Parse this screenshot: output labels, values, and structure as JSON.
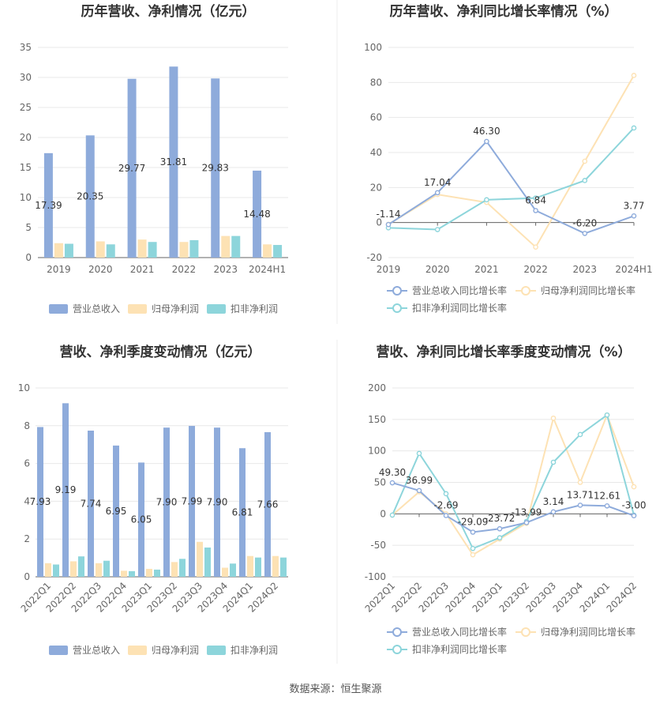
{
  "source_label": "数据来源：恒生聚源",
  "colors": {
    "revenue": "#8eabdb",
    "net_profit": "#fde2b4",
    "deducted_profit": "#8dd5db",
    "grid": "#e8e8e8",
    "axis": "#666666"
  },
  "chart_data": [
    {
      "type": "bar",
      "title": "历年营收、净利情况（亿元）",
      "categories": [
        "2019",
        "2020",
        "2021",
        "2022",
        "2023",
        "2024H1"
      ],
      "series": [
        {
          "name": "营业总收入",
          "values": [
            17.39,
            20.35,
            29.77,
            31.81,
            29.83,
            14.48
          ]
        },
        {
          "name": "归母净利润",
          "values": [
            2.4,
            2.7,
            3.0,
            2.6,
            3.6,
            2.2
          ]
        },
        {
          "name": "扣非净利润",
          "values": [
            2.3,
            2.2,
            2.6,
            2.9,
            3.6,
            2.1
          ]
        }
      ],
      "data_labels": [
        "17.39",
        "20.35",
        "29.77",
        "31.81",
        "29.83",
        "14.48"
      ],
      "ylim": [
        0,
        35
      ],
      "yticks": [
        "0",
        "5",
        "10",
        "15",
        "20",
        "25",
        "30",
        "35"
      ],
      "grid": true,
      "legend": "bottom"
    },
    {
      "type": "line",
      "title": "历年营收、净利同比增长率情况（%）",
      "categories": [
        "2019",
        "2020",
        "2021",
        "2022",
        "2023",
        "2024H1"
      ],
      "series": [
        {
          "name": "营业总收入同比增长率",
          "values": [
            -1.14,
            17.04,
            46.3,
            6.84,
            -6.2,
            3.77
          ]
        },
        {
          "name": "归母净利润同比增长率",
          "values": [
            -1,
            16,
            11.5,
            -14,
            35,
            84
          ]
        },
        {
          "name": "扣非净利润同比增长率",
          "values": [
            -3,
            -4,
            13,
            14,
            24,
            54
          ]
        }
      ],
      "data_labels": [
        "-1.14",
        "17.04",
        "46.30",
        "6.84",
        "-6.20",
        "3.77"
      ],
      "ylim": [
        -20,
        100
      ],
      "yticks": [
        "-20",
        "0",
        "20",
        "40",
        "60",
        "80",
        "100"
      ],
      "grid": true,
      "legend": "bottom"
    },
    {
      "type": "bar",
      "title": "营收、净利季度变动情况（亿元）",
      "categories": [
        "2022Q1",
        "2022Q2",
        "2022Q3",
        "2022Q4",
        "2023Q1",
        "2023Q2",
        "2023Q3",
        "2023Q4",
        "2024Q1",
        "2024Q2"
      ],
      "series": [
        {
          "name": "营业总收入",
          "values": [
            7.93,
            9.19,
            7.74,
            6.95,
            6.05,
            7.9,
            7.99,
            7.9,
            6.81,
            7.66
          ]
        },
        {
          "name": "归母净利润",
          "values": [
            0.72,
            0.82,
            0.72,
            0.32,
            0.42,
            0.78,
            1.85,
            0.48,
            1.1,
            1.1
          ]
        },
        {
          "name": "扣非净利润",
          "values": [
            0.65,
            1.08,
            0.85,
            0.3,
            0.38,
            0.95,
            1.55,
            0.7,
            1.02,
            1.02
          ]
        }
      ],
      "data_labels": [
        "7.93",
        "9.19",
        "7.74",
        "6.95",
        "6.05",
        "7.90",
        "7.99",
        "7.90",
        "6.81",
        "7.66"
      ],
      "ylim": [
        0,
        10
      ],
      "yticks": [
        "0",
        "2",
        "4",
        "6",
        "8",
        "10"
      ],
      "grid": true,
      "legend": "bottom"
    },
    {
      "type": "line",
      "title": "营收、净利同比增长率季度变动情况（%）",
      "categories": [
        "2022Q1",
        "2022Q2",
        "2022Q3",
        "2022Q4",
        "2023Q1",
        "2023Q2",
        "2023Q3",
        "2023Q4",
        "2024Q1",
        "2024Q2"
      ],
      "series": [
        {
          "name": "营业总收入同比增长率",
          "values": [
            49.3,
            36.99,
            -2.69,
            -29.09,
            -23.72,
            -13.99,
            3.14,
            13.71,
            12.61,
            -3.0
          ]
        },
        {
          "name": "归母净利润同比增长率",
          "values": [
            -2,
            35,
            0,
            -65,
            -40,
            -15,
            152,
            50,
            157,
            43
          ]
        },
        {
          "name": "扣非净利润同比增长率",
          "values": [
            -2,
            96,
            32,
            -55,
            -38,
            -12,
            82,
            126,
            157,
            -2
          ]
        }
      ],
      "data_labels": [
        "49.30",
        "36.99",
        "-2.69",
        "-29.09",
        "-23.72",
        "-13.99",
        "3.14",
        "13.71",
        "12.61",
        "-3.00"
      ],
      "ylim": [
        -100,
        200
      ],
      "yticks": [
        "-100",
        "-50",
        "0",
        "50",
        "100",
        "150",
        "200"
      ],
      "grid": true,
      "legend": "bottom"
    }
  ]
}
